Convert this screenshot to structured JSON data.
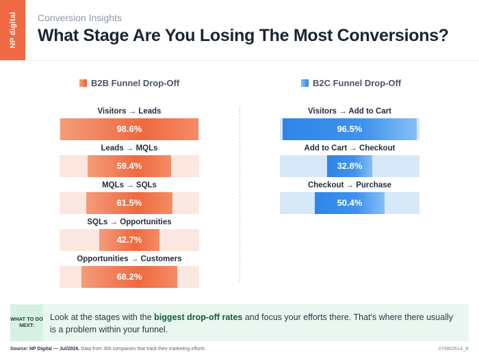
{
  "brand": "NP digital",
  "eyebrow": "Conversion Insights",
  "title": "What Stage Are You Losing The Most Conversions?",
  "chart_data": [
    {
      "type": "bar",
      "title": "B2B Funnel Drop-Off",
      "series_color": "#ed5f35",
      "categories": [
        "Visitors → Leads",
        "Leads → MQLs",
        "MQLs → SQLs",
        "SQLs → Opportunities",
        "Opportunities → Customers"
      ],
      "values": [
        98.6,
        59.4,
        61.5,
        42.7,
        68.2
      ],
      "value_labels": [
        "98.6%",
        "59.4%",
        "61.5%",
        "42.7%",
        "68.2%"
      ],
      "unit": "%",
      "ylim": [
        0,
        100
      ],
      "orientation": "horizontal-centered"
    },
    {
      "type": "bar",
      "title": "B2C Funnel Drop-Off",
      "series_color": "#2f86e8",
      "categories": [
        "Visitors → Add to Cart",
        "Add to Cart → Checkout",
        "Checkout → Purchase"
      ],
      "values": [
        96.5,
        32.8,
        50.4
      ],
      "value_labels": [
        "96.5%",
        "32.8%",
        "50.4%"
      ],
      "unit": "%",
      "ylim": [
        0,
        100
      ],
      "orientation": "horizontal-centered"
    }
  ],
  "callout": {
    "tag": "WHAT TO DO NEXT:",
    "text_before": "Look at the stages with the ",
    "text_bold": "biggest drop-off rates",
    "text_after": " and focus your efforts there. That's where there usually is a problem within your funnel."
  },
  "footer": {
    "source_label": "Source: NP Digital — Jul/2026.",
    "source_text": " Data from 300 companies that track their marketing efforts.",
    "code": "07080261A_K"
  }
}
